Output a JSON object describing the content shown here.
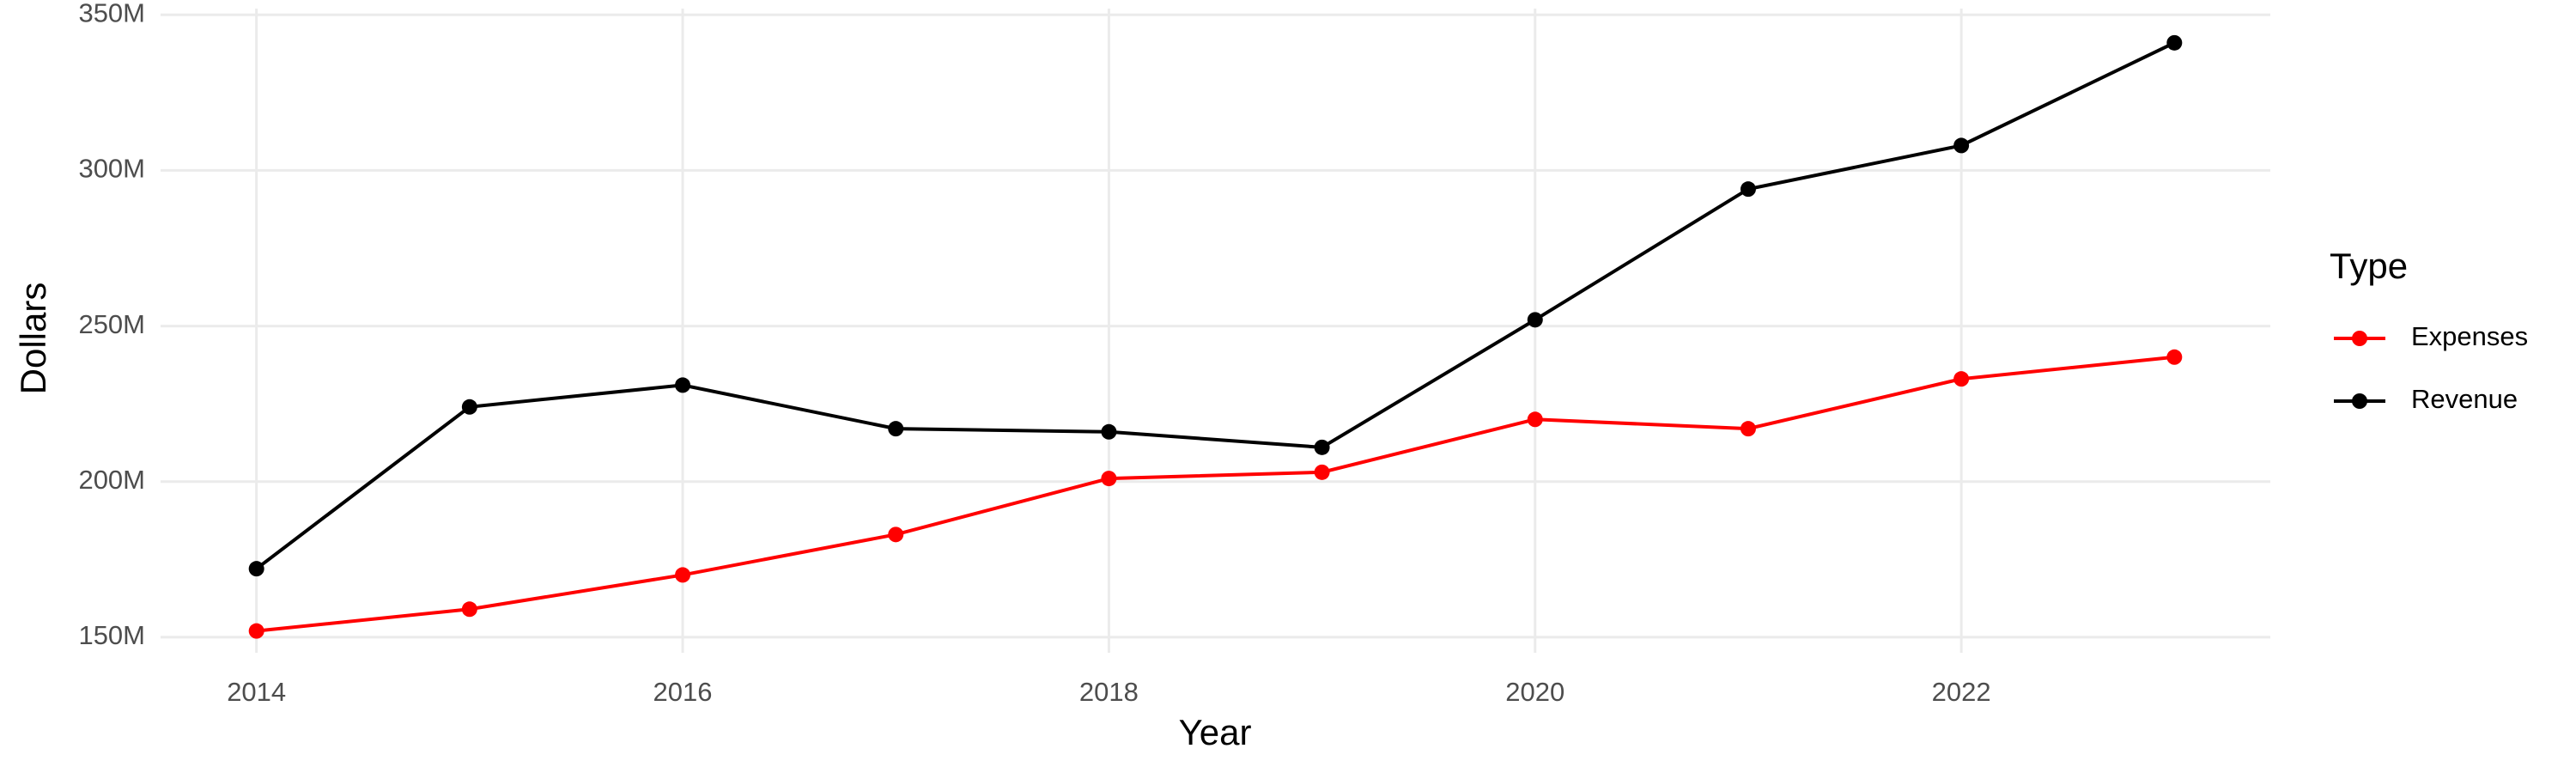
{
  "chart_data": {
    "type": "line",
    "x_label": "Year",
    "y_label": "Dollars",
    "legend_title": "Type",
    "x": [
      2014,
      2015,
      2016,
      2017,
      2018,
      2019,
      2020,
      2021,
      2022,
      2023
    ],
    "series": [
      {
        "name": "Expenses",
        "color": "#ff0000",
        "values": [
          152000000,
          159000000,
          170000000,
          183000000,
          201000000,
          203000000,
          220000000,
          217000000,
          233000000,
          240000000
        ]
      },
      {
        "name": "Revenue",
        "color": "#000000",
        "values": [
          172000000,
          224000000,
          231000000,
          217000000,
          216000000,
          211000000,
          252000000,
          294000000,
          308000000,
          341000000
        ]
      }
    ],
    "xlim": [
      2013.55,
      2023.45
    ],
    "xticks": [
      2014,
      2016,
      2018,
      2020,
      2022
    ],
    "ylim": [
      145000000,
      352000000
    ],
    "yticks": [
      {
        "value": 150000000,
        "label": "150M"
      },
      {
        "value": 200000000,
        "label": "200M"
      },
      {
        "value": 250000000,
        "label": "250M"
      },
      {
        "value": 300000000,
        "label": "300M"
      },
      {
        "value": 350000000,
        "label": "350M"
      }
    ],
    "grid": true,
    "legend_position": "right"
  }
}
